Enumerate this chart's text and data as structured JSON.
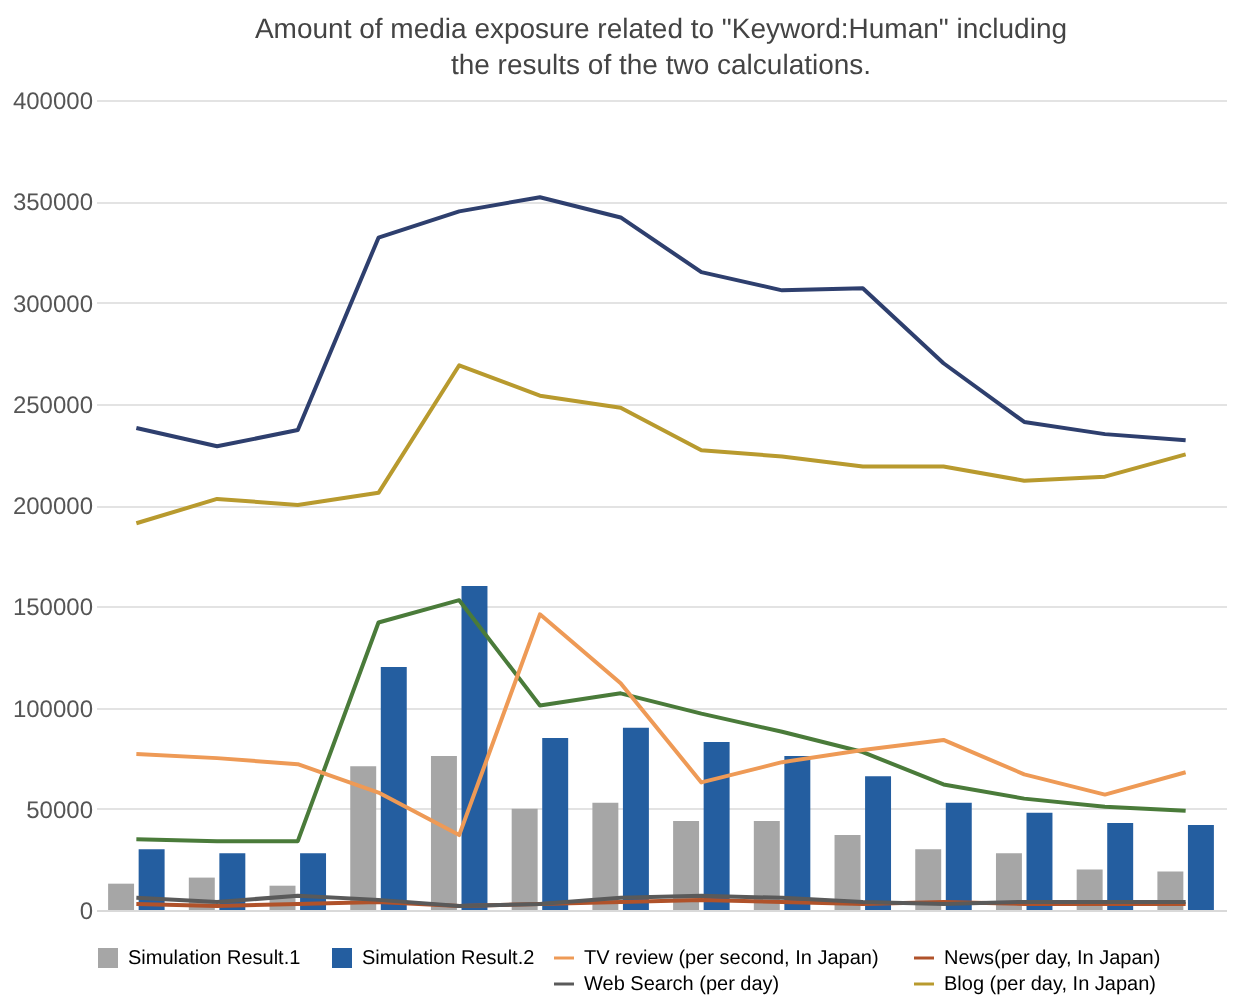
{
  "chart_data": {
    "type": "bar",
    "title": "Amount of media exposure related to \"Keyword:Human\" including the results of the two calculations.",
    "categories": [
      null,
      null,
      null,
      null,
      null,
      null,
      null,
      null,
      null,
      null,
      null,
      null,
      null,
      null
    ],
    "series": [
      {
        "name": "Simulation Result.1",
        "color": "#a6a6a6",
        "values": [
          13000,
          16000,
          12000,
          71000,
          76000,
          50000,
          53000,
          44000,
          44000,
          37000,
          30000,
          28000,
          20000,
          19000
        ]
      },
      {
        "name": "Simulation Result.2",
        "color": "#245ea0",
        "values": [
          30000,
          28000,
          28000,
          120000,
          160000,
          85000,
          90000,
          83000,
          76000,
          66000,
          53000,
          48000,
          43000,
          42000
        ]
      },
      {
        "name": "TV review (per second, In Japan)",
        "type": "line",
        "color": "#ee9a56",
        "values": [
          77000,
          75000,
          72000,
          58000,
          37000,
          146000,
          112000,
          63000,
          73000,
          79000,
          84000,
          67000,
          57000,
          68000
        ]
      },
      {
        "name": "News(per day, In Japan)",
        "type": "line",
        "color": "#b0522a",
        "values": [
          3000,
          2000,
          3000,
          4000,
          2000,
          3000,
          4000,
          5000,
          4000,
          3000,
          4000,
          3000,
          3000,
          3000
        ]
      },
      {
        "name": "Web Search (per day)",
        "type": "line",
        "color": "#5a5a5a",
        "values": [
          6000,
          4000,
          7000,
          5000,
          2000,
          3000,
          6000,
          7000,
          6000,
          4000,
          3000,
          4000,
          4000,
          4000
        ]
      },
      {
        "name": "Blog (per day, In Japan)",
        "type": "line",
        "color": "#b89a2e",
        "values": [
          191000,
          203000,
          200000,
          206000,
          269000,
          254000,
          248000,
          227000,
          224000,
          219000,
          219000,
          212000,
          214000,
          225000
        ]
      },
      {
        "type": "line",
        "color": "#2e3f6e",
        "values": [
          238000,
          229000,
          237000,
          332000,
          345000,
          352000,
          342000,
          315000,
          306000,
          307000,
          270000,
          241000,
          235000,
          232000
        ]
      },
      {
        "type": "line",
        "color": "#4a7b3a",
        "values": [
          35000,
          34000,
          34000,
          142000,
          153000,
          101000,
          107000,
          97000,
          88000,
          78000,
          62000,
          55000,
          51000,
          49000
        ]
      }
    ],
    "ylim": [
      0,
      400000
    ],
    "yticks": [
      0,
      50000,
      100000,
      150000,
      200000,
      250000,
      300000,
      350000,
      400000
    ],
    "grid": "y",
    "legend": "bottom",
    "tick_labels": "y"
  }
}
